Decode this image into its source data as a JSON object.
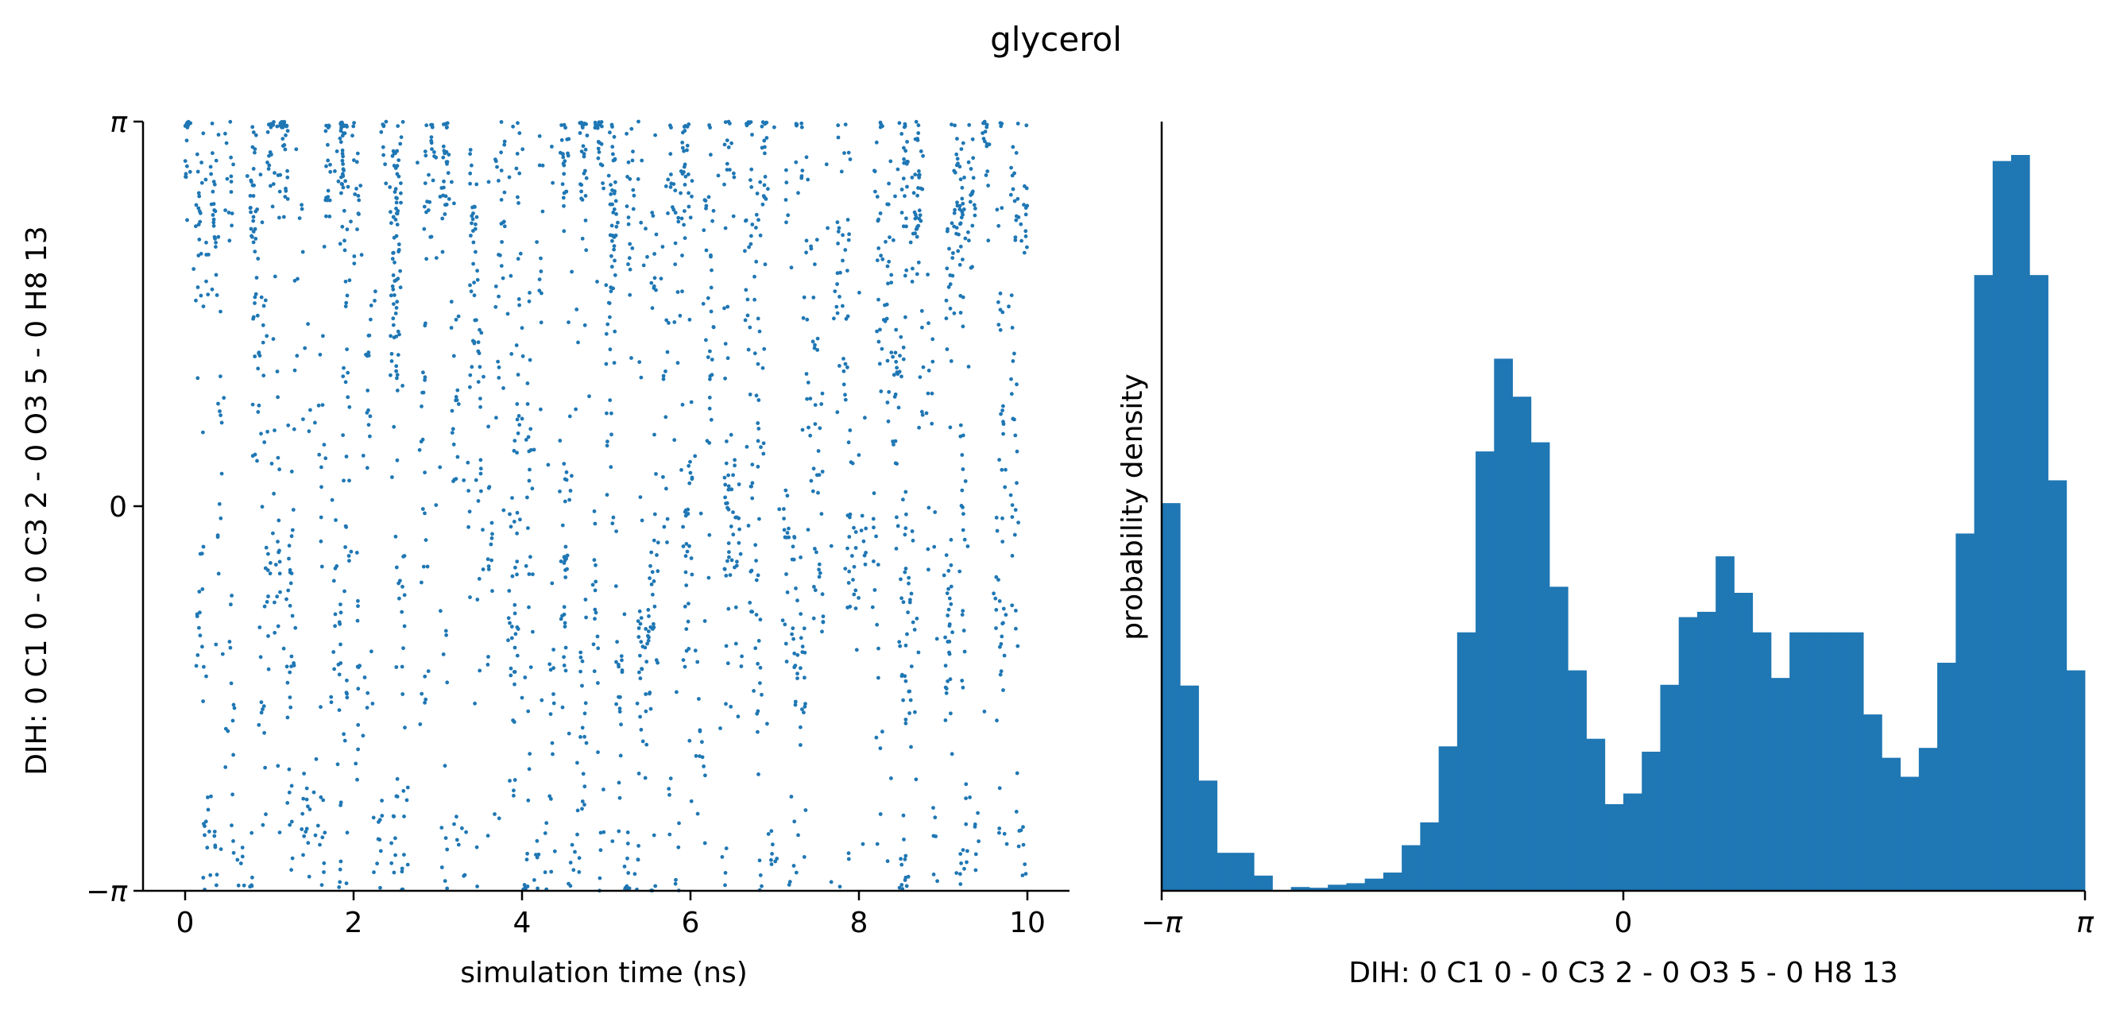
{
  "figure": {
    "suptitle": "glycerol"
  },
  "colors": {
    "series": "#1f77b4",
    "axis": "#000000"
  },
  "chart_data": [
    {
      "type": "scatter",
      "title": "",
      "xlabel": "simulation time (ns)",
      "ylabel": "DIH:  0 C1 0 -  0 C3 2 -  0 O3 5 -  0 H8 13",
      "xlim": [
        -0.5,
        10.5
      ],
      "ylim": [
        -3.1416,
        3.1416
      ],
      "xticks": [
        0,
        2,
        4,
        6,
        8,
        10
      ],
      "xtick_labels": [
        "0",
        "2",
        "4",
        "6",
        "8",
        "10"
      ],
      "yticks": [
        -3.1416,
        0,
        3.1416
      ],
      "ytick_labels": [
        "−π",
        "0",
        "π"
      ],
      "grid": false,
      "marker_size": "small",
      "density_by_segment": {
        "segment_ns": 0.5,
        "upper_band": [
          0.9,
          0.6,
          0.7,
          0.8,
          0.4,
          0.5,
          0.6,
          0.3,
          0.1,
          1.0,
          0.8,
          0.6,
          0.3,
          0.4,
          0.2,
          0.1,
          0.1,
          0.8,
          0.8,
          0.7
        ],
        "mid_positive": [
          0.3,
          0.5,
          0.3,
          0.6,
          0.8,
          0.8,
          0.9,
          0.7,
          0.4,
          0.3,
          0.4,
          0.6,
          0.7,
          0.6,
          0.5,
          0.8,
          0.9,
          0.5,
          0.5,
          0.6
        ],
        "mid_negative": [
          0.4,
          0.6,
          0.7,
          0.5,
          0.3,
          0.4,
          0.3,
          0.7,
          0.6,
          0.8,
          1.0,
          0.8,
          0.6,
          0.7,
          0.8,
          0.5,
          0.4,
          0.6,
          0.7,
          0.5
        ],
        "lower_band": [
          0.5,
          0.4,
          0.6,
          0.5,
          0.4,
          0.4,
          0.3,
          0.1,
          0.5,
          0.5,
          0.4,
          0.3,
          0.2,
          0.3,
          0.2,
          0.1,
          0.0,
          0.5,
          0.5,
          0.4
        ]
      }
    },
    {
      "type": "bar",
      "title": "",
      "xlabel": "DIH:  0 C1 0 -  0 C3 2 -  0 O3 5 -  0 H8 13",
      "ylabel": "probability density",
      "xlim": [
        -3.1416,
        3.1416
      ],
      "xticks": [
        -3.1416,
        0,
        3.1416
      ],
      "xtick_labels": [
        "−π",
        "0",
        "π"
      ],
      "bins": 50,
      "values": [
        0.51,
        0.27,
        0.145,
        0.05,
        0.05,
        0.02,
        0.0,
        0.005,
        0.004,
        0.008,
        0.01,
        0.016,
        0.024,
        0.06,
        0.09,
        0.19,
        0.34,
        0.578,
        0.7,
        0.65,
        0.59,
        0.4,
        0.29,
        0.2,
        0.114,
        0.128,
        0.183,
        0.271,
        0.36,
        0.367,
        0.44,
        0.392,
        0.34,
        0.28,
        0.34,
        0.34,
        0.34,
        0.34,
        0.232,
        0.175,
        0.15,
        0.188,
        0.3,
        0.47,
        0.81,
        0.96,
        0.968,
        0.81,
        0.54,
        0.29
      ],
      "grid": false
    }
  ]
}
